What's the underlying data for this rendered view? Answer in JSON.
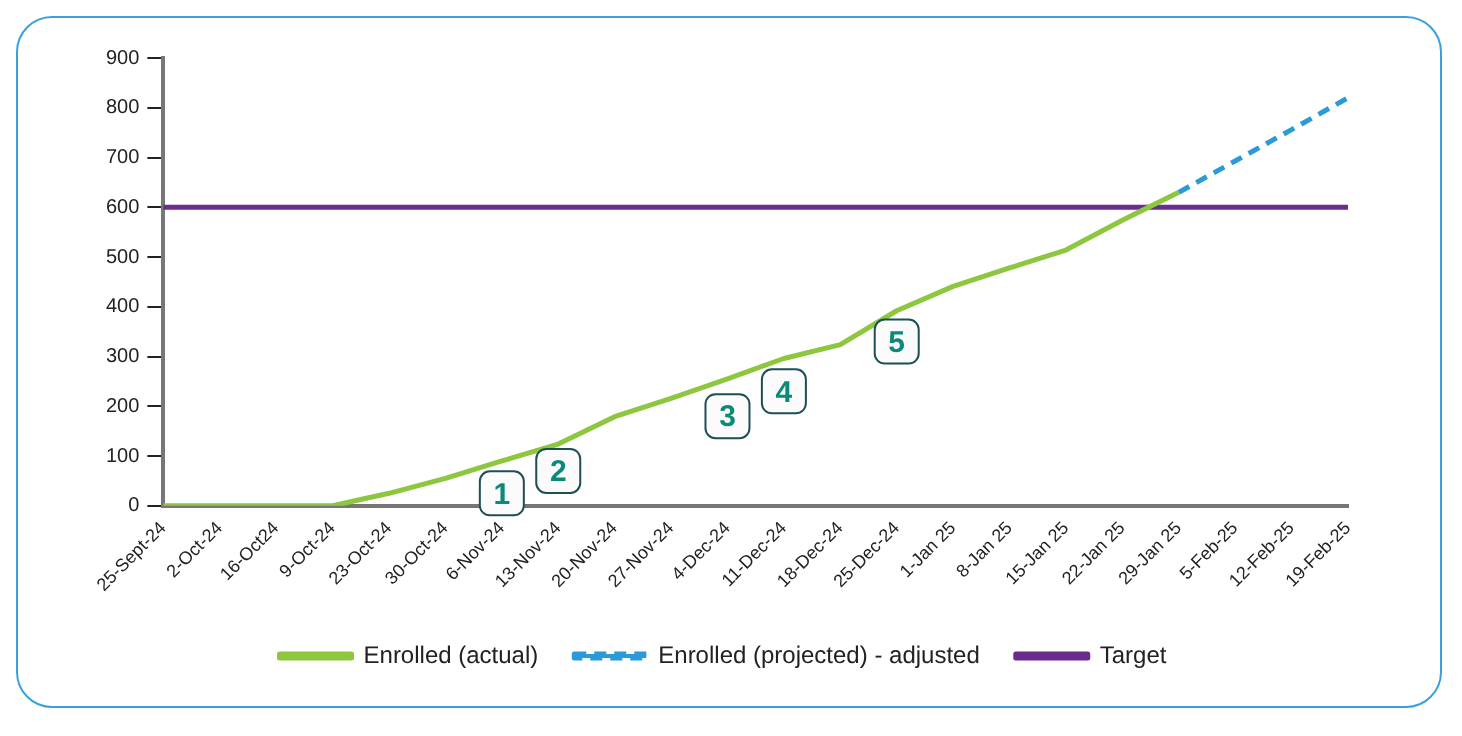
{
  "chart_data": {
    "type": "line",
    "categories": [
      "25-Sept-24",
      "2-Oct-24",
      "16-Oct24",
      "9-Oct-24",
      "23-Oct-24",
      "30-Oct-24",
      "6-Nov-24",
      "13-Nov-24",
      "20-Nov-24",
      "27-Nov-24",
      "4-Dec-24",
      "11-Dec-24",
      "18-Dec-24",
      "25-Dec-24",
      "1-Jan 25",
      "8-Jan 25",
      "15-Jan 25",
      "22-Jan 25",
      "29-Jan 25",
      "5-Feb-25",
      "12-Feb-25",
      "19-Feb-25"
    ],
    "series": [
      {
        "name": "Enrolled (actual)",
        "color": "#8dc63f",
        "values": [
          0,
          0,
          0,
          0,
          25,
          55,
          90,
          124,
          179,
          216,
          255,
          296,
          324,
          392,
          441,
          478,
          514,
          574,
          630,
          null,
          null,
          null
        ]
      },
      {
        "name": "Enrolled (projected) - adjusted",
        "color": "#2a9bd8",
        "line_style": "dashed",
        "values": [
          null,
          null,
          null,
          null,
          null,
          null,
          null,
          null,
          null,
          null,
          null,
          null,
          null,
          null,
          null,
          null,
          null,
          null,
          630,
          693,
          756,
          820
        ]
      },
      {
        "name": "Target",
        "color": "#6b2c8f",
        "values": [
          600,
          600,
          600,
          600,
          600,
          600,
          600,
          600,
          600,
          600,
          600,
          600,
          600,
          600,
          600,
          600,
          600,
          600,
          600,
          600,
          600,
          600
        ]
      }
    ],
    "ylim": [
      0,
      900
    ],
    "yticks": [
      0,
      100,
      200,
      300,
      400,
      500,
      600,
      700,
      800,
      900
    ],
    "grid": false,
    "legend": "bottom",
    "marker": "none",
    "line_style": "solid",
    "annotations": [
      {
        "text": "1",
        "x": "6-Nov-24",
        "y": 25
      },
      {
        "text": "2",
        "x": "13-Nov-24",
        "y": 70
      },
      {
        "text": "3",
        "x": "4-Dec-24",
        "y": 180
      },
      {
        "text": "4",
        "x": "11-Dec-24",
        "y": 230
      },
      {
        "text": "5",
        "x": "25-Dec-24",
        "y": 330
      }
    ]
  }
}
